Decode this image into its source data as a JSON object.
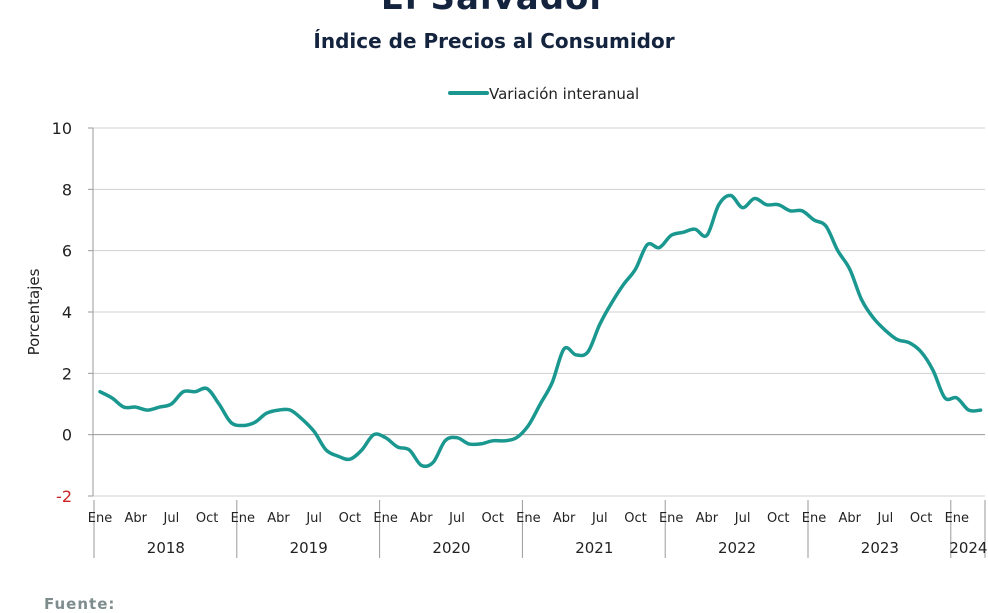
{
  "chart_data": {
    "type": "line",
    "title": "El Salvador",
    "subtitle": "Índice de Precios al Consumidor",
    "xlabel": "",
    "ylabel": "Porcentajes",
    "ylim": [
      -2,
      10
    ],
    "yticks": [
      10,
      8,
      6,
      4,
      2,
      0,
      -2
    ],
    "grid": true,
    "legend_position": "top-center",
    "line_color": "#1a9890",
    "month_tick_labels": [
      "Ene",
      "Abr",
      "Jul",
      "Oct"
    ],
    "years": [
      "2018",
      "2019",
      "2020",
      "2021",
      "2022",
      "2023",
      "2024"
    ],
    "series": [
      {
        "name": "Variación interanual",
        "x_start": "2018-01",
        "x_end": "2024-03",
        "values": [
          1.4,
          1.2,
          0.9,
          0.9,
          0.8,
          0.9,
          1.0,
          1.4,
          1.4,
          1.5,
          1.0,
          0.4,
          0.3,
          0.4,
          0.7,
          0.8,
          0.8,
          0.5,
          0.1,
          -0.5,
          -0.7,
          -0.8,
          -0.5,
          0.0,
          -0.1,
          -0.4,
          -0.5,
          -1.0,
          -0.9,
          -0.2,
          -0.1,
          -0.3,
          -0.3,
          -0.2,
          -0.2,
          -0.1,
          0.3,
          1.0,
          1.7,
          2.8,
          2.6,
          2.7,
          3.6,
          4.3,
          4.9,
          5.4,
          6.2,
          6.1,
          6.5,
          6.6,
          6.7,
          6.5,
          7.5,
          7.8,
          7.4,
          7.7,
          7.5,
          7.5,
          7.3,
          7.3,
          7.0,
          6.8,
          6.0,
          5.4,
          4.4,
          3.8,
          3.4,
          3.1,
          3.0,
          2.7,
          2.1,
          1.2,
          1.2,
          0.8,
          0.8
        ]
      }
    ]
  },
  "footer": {
    "source_label": "Fuente:"
  }
}
